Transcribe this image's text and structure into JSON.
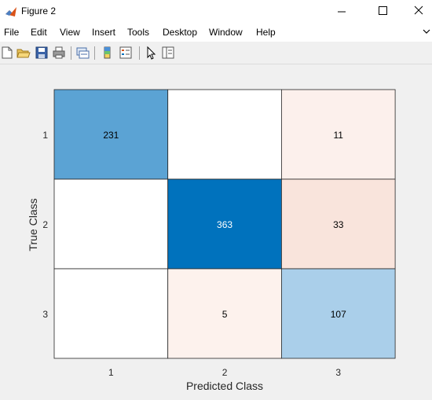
{
  "window": {
    "title": "Figure 2"
  },
  "menu": {
    "items": [
      "File",
      "Edit",
      "View",
      "Insert",
      "Tools",
      "Desktop",
      "Window",
      "Help"
    ]
  },
  "toolbar": {
    "icons": [
      "new-figure-icon",
      "open-file-icon",
      "save-icon",
      "print-icon",
      "link-plot-icon",
      "colorbar-icon",
      "legend-icon",
      "edit-plot-icon",
      "property-editor-icon"
    ]
  },
  "chart_data": {
    "type": "heatmap",
    "xlabel": "Predicted Class",
    "ylabel": "True Class",
    "x_categories": [
      "1",
      "2",
      "3"
    ],
    "y_categories": [
      "1",
      "2",
      "3"
    ],
    "values": [
      [
        231,
        null,
        11
      ],
      [
        null,
        363,
        33
      ],
      [
        null,
        5,
        107
      ]
    ],
    "cell_colors": [
      [
        "#5ba3d4",
        "#ffffff",
        "#fcf0ec"
      ],
      [
        "#ffffff",
        "#0072bd",
        "#f9e4dc"
      ],
      [
        "#ffffff",
        "#fdf2ed",
        "#aacfea"
      ]
    ],
    "dark_text_threshold": 300
  }
}
